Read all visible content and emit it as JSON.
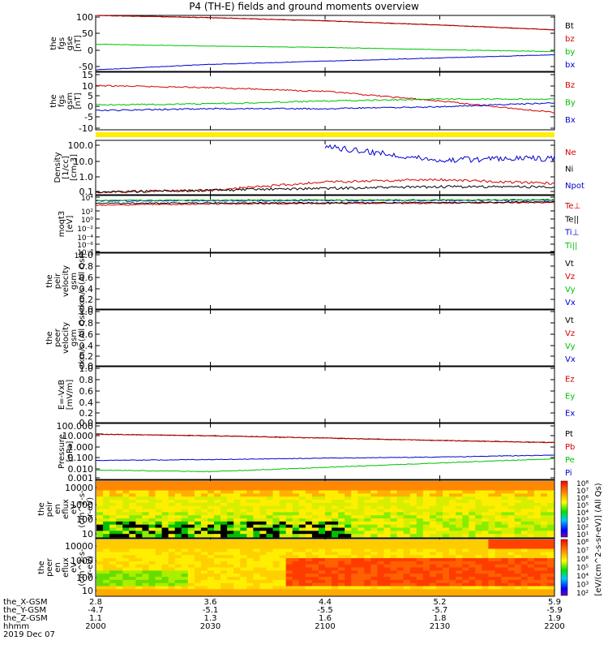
{
  "title": "P4 (TH-E) fields and ground moments overview",
  "colors": {
    "red": "#d40000",
    "green": "#00c000",
    "blue": "#0000d0",
    "black": "#000000",
    "yellow": "#ffee00"
  },
  "panels": [
    {
      "id": "fgs-gse",
      "ylabel": [
        "the",
        "fgs",
        "gse",
        "[nT]"
      ],
      "ticks": [
        "100",
        "50",
        "0",
        "-50"
      ],
      "legend": [
        {
          "t": "Bt",
          "c": "black"
        },
        {
          "t": "bz",
          "c": "red"
        },
        {
          "t": "by",
          "c": "green"
        },
        {
          "t": "bx",
          "c": "blue"
        }
      ]
    },
    {
      "id": "fgs-gsm",
      "ylabel": [
        "the",
        "fgs",
        "gsm",
        "[nT]"
      ],
      "ticks": [
        "15",
        "10",
        "5",
        "0",
        "-5",
        "-10"
      ],
      "legend": [
        {
          "t": "Bz",
          "c": "red"
        },
        {
          "t": "By",
          "c": "green"
        },
        {
          "t": "Bx",
          "c": "blue"
        }
      ]
    },
    {
      "id": "density",
      "ylabel": [
        "Density",
        "[1/cc]",
        "[cm-3]"
      ],
      "ticks": [
        "100.0",
        "10.0",
        "1.0",
        "0.1"
      ],
      "legend": [
        {
          "t": "Ne",
          "c": "red"
        },
        {
          "t": "Ni",
          "c": "black"
        },
        {
          "t": "Npot",
          "c": "blue"
        }
      ]
    },
    {
      "id": "temperature",
      "ylabel": [
        "moqt3",
        "[eV]"
      ],
      "ticks": [
        "10⁴",
        "10²",
        "10⁰",
        "10⁻²",
        "10⁻⁴",
        "10⁻⁶",
        "10⁻⁸",
        "10⁻¹⁰"
      ],
      "legend": [
        {
          "t": "Te⊥",
          "c": "red"
        },
        {
          "t": "Te||",
          "c": "black"
        },
        {
          "t": "Ti⊥",
          "c": "blue"
        },
        {
          "t": "Ti||",
          "c": "green"
        }
      ]
    },
    {
      "id": "peir-velocity",
      "ylabel": [
        "the",
        "peir",
        "velocity",
        "gsm",
        "km/s (All Qs)"
      ],
      "ticks": [
        "1.0",
        "0.8",
        "0.6",
        "0.4",
        "0.2",
        "0.0"
      ],
      "legend": [
        {
          "t": "Vt",
          "c": "black"
        },
        {
          "t": "Vz",
          "c": "red"
        },
        {
          "t": "Vy",
          "c": "green"
        },
        {
          "t": "Vx",
          "c": "blue"
        }
      ]
    },
    {
      "id": "peer-velocity",
      "ylabel": [
        "the",
        "peer",
        "velocity",
        "gsm",
        "km/s (All Qs)"
      ],
      "ticks": [
        "1.0",
        "0.8",
        "0.6",
        "0.4",
        "0.2",
        "0.0"
      ],
      "legend": [
        {
          "t": "Vt",
          "c": "black"
        },
        {
          "t": "Vz",
          "c": "red"
        },
        {
          "t": "Vy",
          "c": "green"
        },
        {
          "t": "Vx",
          "c": "blue"
        }
      ]
    },
    {
      "id": "efield",
      "ylabel": [
        "E=-VxB",
        "[mV/m]"
      ],
      "ticks": [
        "1.0",
        "0.8",
        "0.6",
        "0.4",
        "0.2",
        "0.0"
      ],
      "legend": [
        {
          "t": "Ez",
          "c": "red"
        },
        {
          "t": "Ey",
          "c": "green"
        },
        {
          "t": "Ex",
          "c": "blue"
        }
      ]
    },
    {
      "id": "pressure",
      "ylabel": [
        "Pressure",
        "[nPa]"
      ],
      "ticks": [
        "100.000",
        "10.000",
        "1.000",
        "0.100",
        "0.010",
        "0.001"
      ],
      "legend": [
        {
          "t": "Pt",
          "c": "black"
        },
        {
          "t": "Pb",
          "c": "red"
        },
        {
          "t": "Pe",
          "c": "green"
        },
        {
          "t": "Pi",
          "c": "blue"
        }
      ]
    },
    {
      "id": "peir-eflux",
      "ylabel": [
        "the",
        "peir",
        "en",
        "eflux",
        "eV",
        "(cm^2-s-",
        "sr-eV)"
      ],
      "ticks": [
        "10000",
        "1000",
        "100",
        "10"
      ],
      "colorbar": {
        "ticks": [
          "10⁸",
          "10⁷",
          "10⁶",
          "10⁵",
          "10⁴",
          "10³",
          "10²",
          "10¹"
        ]
      }
    },
    {
      "id": "peer-eflux",
      "ylabel": [
        "the",
        "peer",
        "en",
        "eflux",
        "eV",
        "(cm^2-s-",
        "sr-eV)"
      ],
      "ticks": [
        "10000",
        "1000",
        "100",
        "10"
      ],
      "colorbar": {
        "ticks": [
          "10⁸",
          "10⁷",
          "10⁶",
          "10⁵",
          "10⁴",
          "10³",
          "10²"
        ]
      }
    }
  ],
  "colorbar_label": "[eV/(cm^2-s-sr-eV)] (All Qs)",
  "flag_bar_color": "yellow",
  "x_axis": {
    "rows": [
      {
        "label": "the_X-GSM",
        "values": [
          "2.8",
          "3.6",
          "4.4",
          "5.2",
          "5.9"
        ]
      },
      {
        "label": "the_Y-GSM",
        "values": [
          "-4.7",
          "-5.1",
          "-5.5",
          "-5.7",
          "-5.9"
        ]
      },
      {
        "label": "the_Z-GSM",
        "values": [
          "1.1",
          "1.3",
          "1.6",
          "1.8",
          "1.9"
        ]
      },
      {
        "label": "hhmm",
        "values": [
          "2000",
          "2030",
          "2100",
          "2130",
          "2200"
        ]
      }
    ],
    "date": "2019 Dec 07"
  },
  "chart_data": [
    {
      "type": "line",
      "panel": "fgs-gse",
      "x_units": "hhmm",
      "x": [
        "2000",
        "2030",
        "2100",
        "2130",
        "2200"
      ],
      "ylim": [
        -70,
        105
      ],
      "series": [
        {
          "name": "Bt",
          "values": [
            105,
            98,
            88,
            75,
            60
          ]
        },
        {
          "name": "bz",
          "values": [
            105,
            98,
            88,
            75,
            60
          ]
        },
        {
          "name": "by",
          "values": [
            15,
            9,
            5,
            -2,
            -8
          ]
        },
        {
          "name": "bx",
          "values": [
            -65,
            -48,
            -38,
            -28,
            -18
          ]
        }
      ]
    },
    {
      "type": "line",
      "panel": "fgs-gsm",
      "x_units": "hhmm",
      "x": [
        "2000",
        "2030",
        "2100",
        "2130",
        "2200"
      ],
      "ylim": [
        -13,
        17
      ],
      "series": [
        {
          "name": "Bz",
          "values": [
            10,
            9,
            7,
            2,
            -4
          ]
        },
        {
          "name": "By",
          "values": [
            0,
            0.5,
            2,
            3,
            3
          ]
        },
        {
          "name": "Bx",
          "values": [
            -3,
            -2,
            -2,
            -1,
            1
          ]
        }
      ]
    },
    {
      "type": "line",
      "panel": "density",
      "scale": "log",
      "x_units": "hhmm",
      "x": [
        "2000",
        "2030",
        "2100",
        "2130",
        "2200"
      ],
      "ylim": [
        0.08,
        200
      ],
      "series": [
        {
          "name": "Ne",
          "values": [
            0.12,
            0.15,
            0.5,
            0.7,
            0.4
          ]
        },
        {
          "name": "Ni",
          "values": [
            0.12,
            0.15,
            0.2,
            0.25,
            0.25
          ]
        },
        {
          "name": "Npot",
          "values": [
            null,
            null,
            80,
            12,
            15
          ]
        }
      ]
    },
    {
      "type": "line",
      "panel": "temperature",
      "scale": "log",
      "x_units": "hhmm",
      "x": [
        "2000",
        "2030",
        "2100",
        "2130",
        "2200"
      ],
      "ylim": [
        1e-10,
        100000.0
      ],
      "series": [
        {
          "name": "Te⊥",
          "values": [
            300,
            600,
            800,
            1000,
            1500
          ]
        },
        {
          "name": "Te||",
          "values": [
            900,
            1000,
            1200,
            1400,
            2000
          ]
        },
        {
          "name": "Ti⊥",
          "values": [
            4000,
            4000,
            5000,
            5000,
            6000
          ]
        },
        {
          "name": "Ti||",
          "values": [
            6000,
            6000,
            7000,
            7000,
            8000
          ]
        }
      ]
    },
    {
      "type": "line",
      "panel": "pressure",
      "scale": "log",
      "x_units": "hhmm",
      "x": [
        "2000",
        "2030",
        "2100",
        "2130",
        "2200"
      ],
      "ylim": [
        0.001,
        100
      ],
      "series": [
        {
          "name": "Pt",
          "values": [
            11,
            8,
            5,
            3,
            2
          ]
        },
        {
          "name": "Pb",
          "values": [
            11,
            8,
            5,
            3,
            2
          ]
        },
        {
          "name": "Pe",
          "values": [
            0.007,
            0.005,
            0.012,
            0.03,
            0.07
          ]
        },
        {
          "name": "Pi",
          "values": [
            0.05,
            0.06,
            0.08,
            0.1,
            0.15
          ]
        }
      ]
    },
    {
      "type": "heatmap",
      "panel": "peir-eflux",
      "y_units": "eV",
      "ylim": [
        5,
        25000
      ]
    },
    {
      "type": "heatmap",
      "panel": "peer-eflux",
      "y_units": "eV",
      "ylim": [
        5,
        25000
      ]
    }
  ]
}
